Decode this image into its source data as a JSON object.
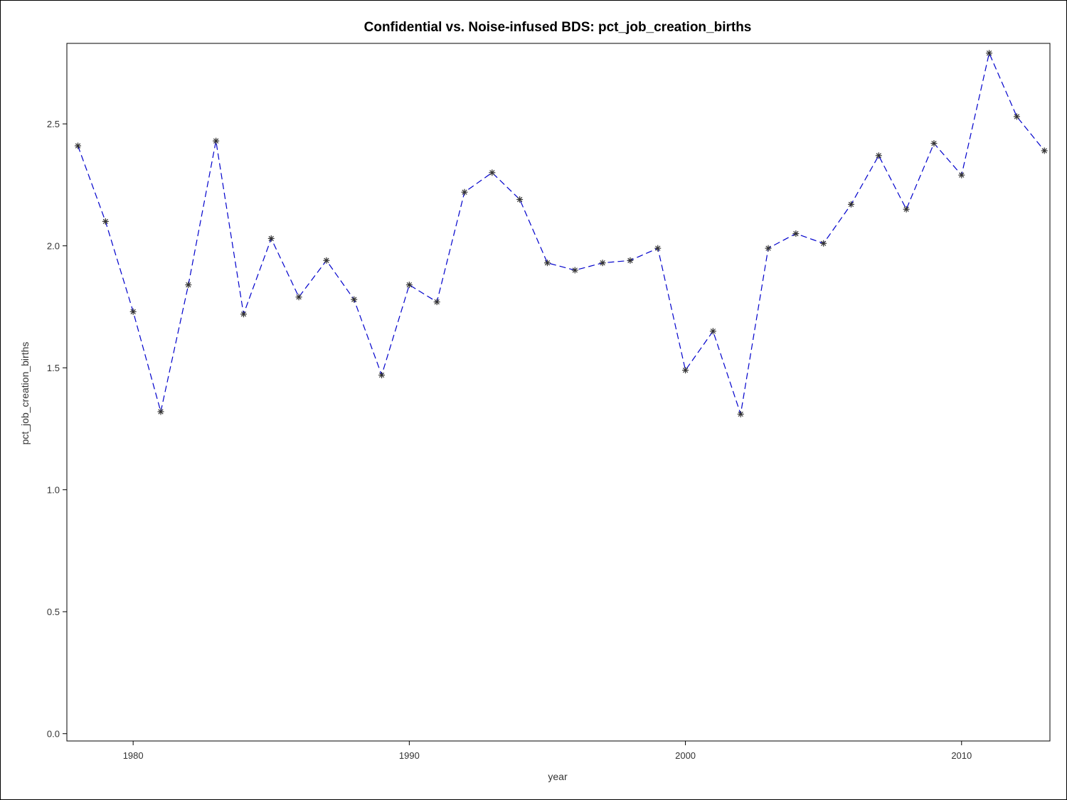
{
  "chart_data": {
    "type": "line",
    "title": "Confidential vs. Noise-infused BDS: pct_job_creation_births",
    "xlabel": "year",
    "ylabel": "pct_job_creation_births",
    "xlim": [
      1977.6,
      2013.2
    ],
    "ylim": [
      -0.03,
      2.83
    ],
    "x_ticks": [
      1980,
      1990,
      2000,
      2010
    ],
    "y_ticks": [
      0.0,
      0.5,
      1.0,
      1.5,
      2.0,
      2.5
    ],
    "grid": false,
    "line_color": "#0000cc",
    "marker_color": "#333333",
    "marker": "asterisk",
    "line_style": "dashed",
    "series": [
      {
        "x": [
          1978,
          1979,
          1980,
          1981,
          1982,
          1983,
          1984,
          1985,
          1986,
          1987,
          1988,
          1989,
          1990,
          1991,
          1992,
          1993,
          1994,
          1995,
          1996,
          1997,
          1998,
          1999,
          2000,
          2001,
          2002,
          2003,
          2004,
          2005,
          2006,
          2007,
          2008,
          2009,
          2010,
          2011,
          2012,
          2013
        ],
        "values": [
          2.41,
          2.1,
          1.73,
          1.32,
          1.84,
          2.43,
          1.72,
          2.03,
          1.79,
          1.94,
          1.78,
          1.47,
          1.84,
          1.77,
          2.22,
          2.3,
          2.19,
          1.93,
          1.9,
          1.93,
          1.94,
          1.99,
          1.49,
          1.65,
          1.31,
          1.99,
          2.05,
          2.01,
          2.17,
          2.37,
          2.15,
          2.42,
          2.29,
          2.79,
          2.53,
          2.39
        ]
      }
    ]
  }
}
